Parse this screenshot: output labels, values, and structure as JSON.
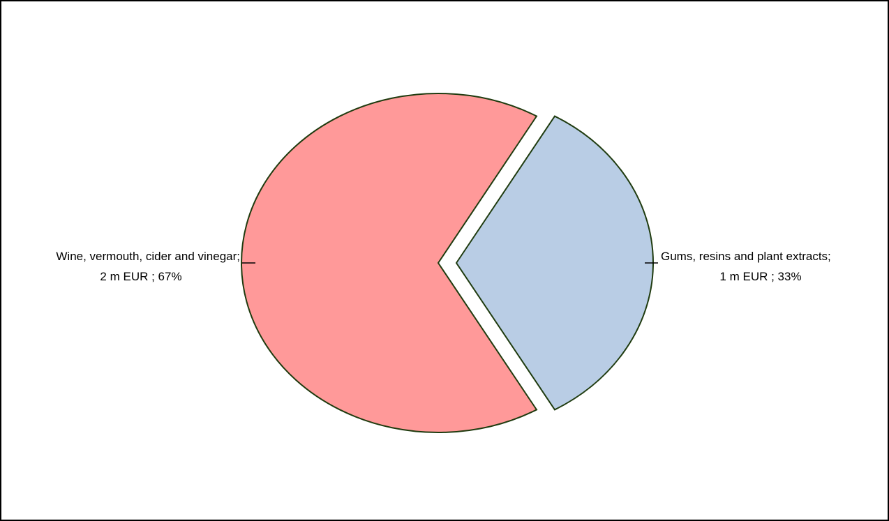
{
  "chart_data": {
    "type": "pie",
    "slices": [
      {
        "label": "Wine, vermouth, cider and vinegar;",
        "value_text": "2 m EUR ; 67%",
        "value": 2,
        "percent": 67,
        "color": "#ff9999",
        "exploded": false
      },
      {
        "label": "Gums, resins and plant extracts;",
        "value_text": "1 m EUR ; 33%",
        "value": 1,
        "percent": 33,
        "color": "#b9cde5",
        "exploded": true
      }
    ],
    "outline_color": "#1f3b0f"
  }
}
